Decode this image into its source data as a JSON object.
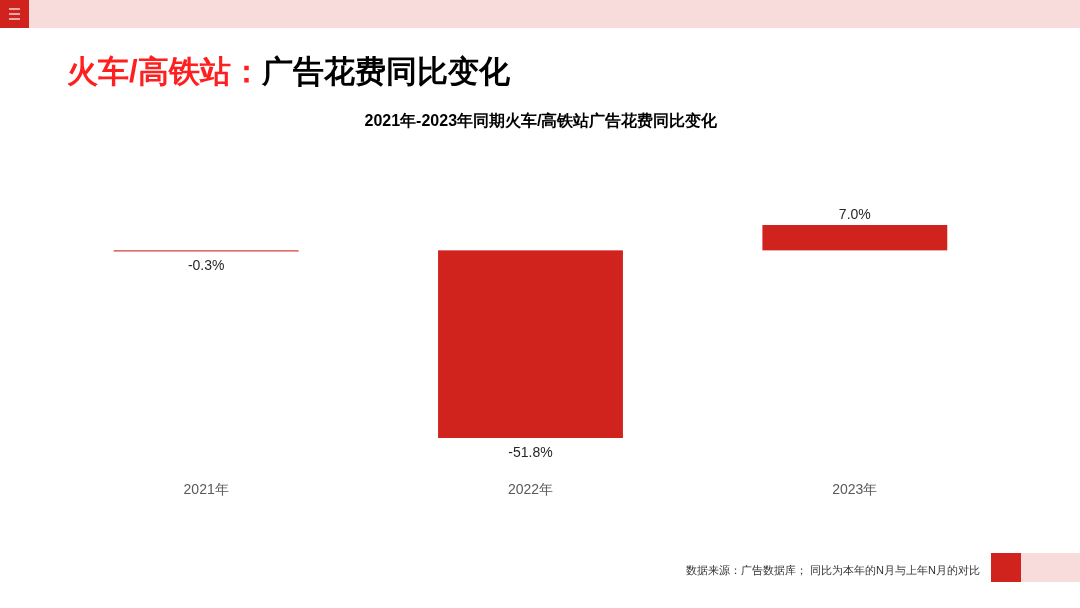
{
  "chart_data": {
    "type": "bar",
    "title": "火车/高铁站：广告花费同比变化",
    "subtitle": "2021年-2023年同期火车/高铁站广告花费同比变化",
    "categories": [
      "2021年",
      "2022年",
      "2023年"
    ],
    "values": [
      -0.3,
      -51.8,
      7.0
    ],
    "value_labels": [
      "-0.3%",
      "-51.8%",
      "7.0%"
    ],
    "color": "#d0231e",
    "annotations": [
      "数据来源：广告数据库； 同比为本年的N月与上年N月的对比"
    ]
  }
}
